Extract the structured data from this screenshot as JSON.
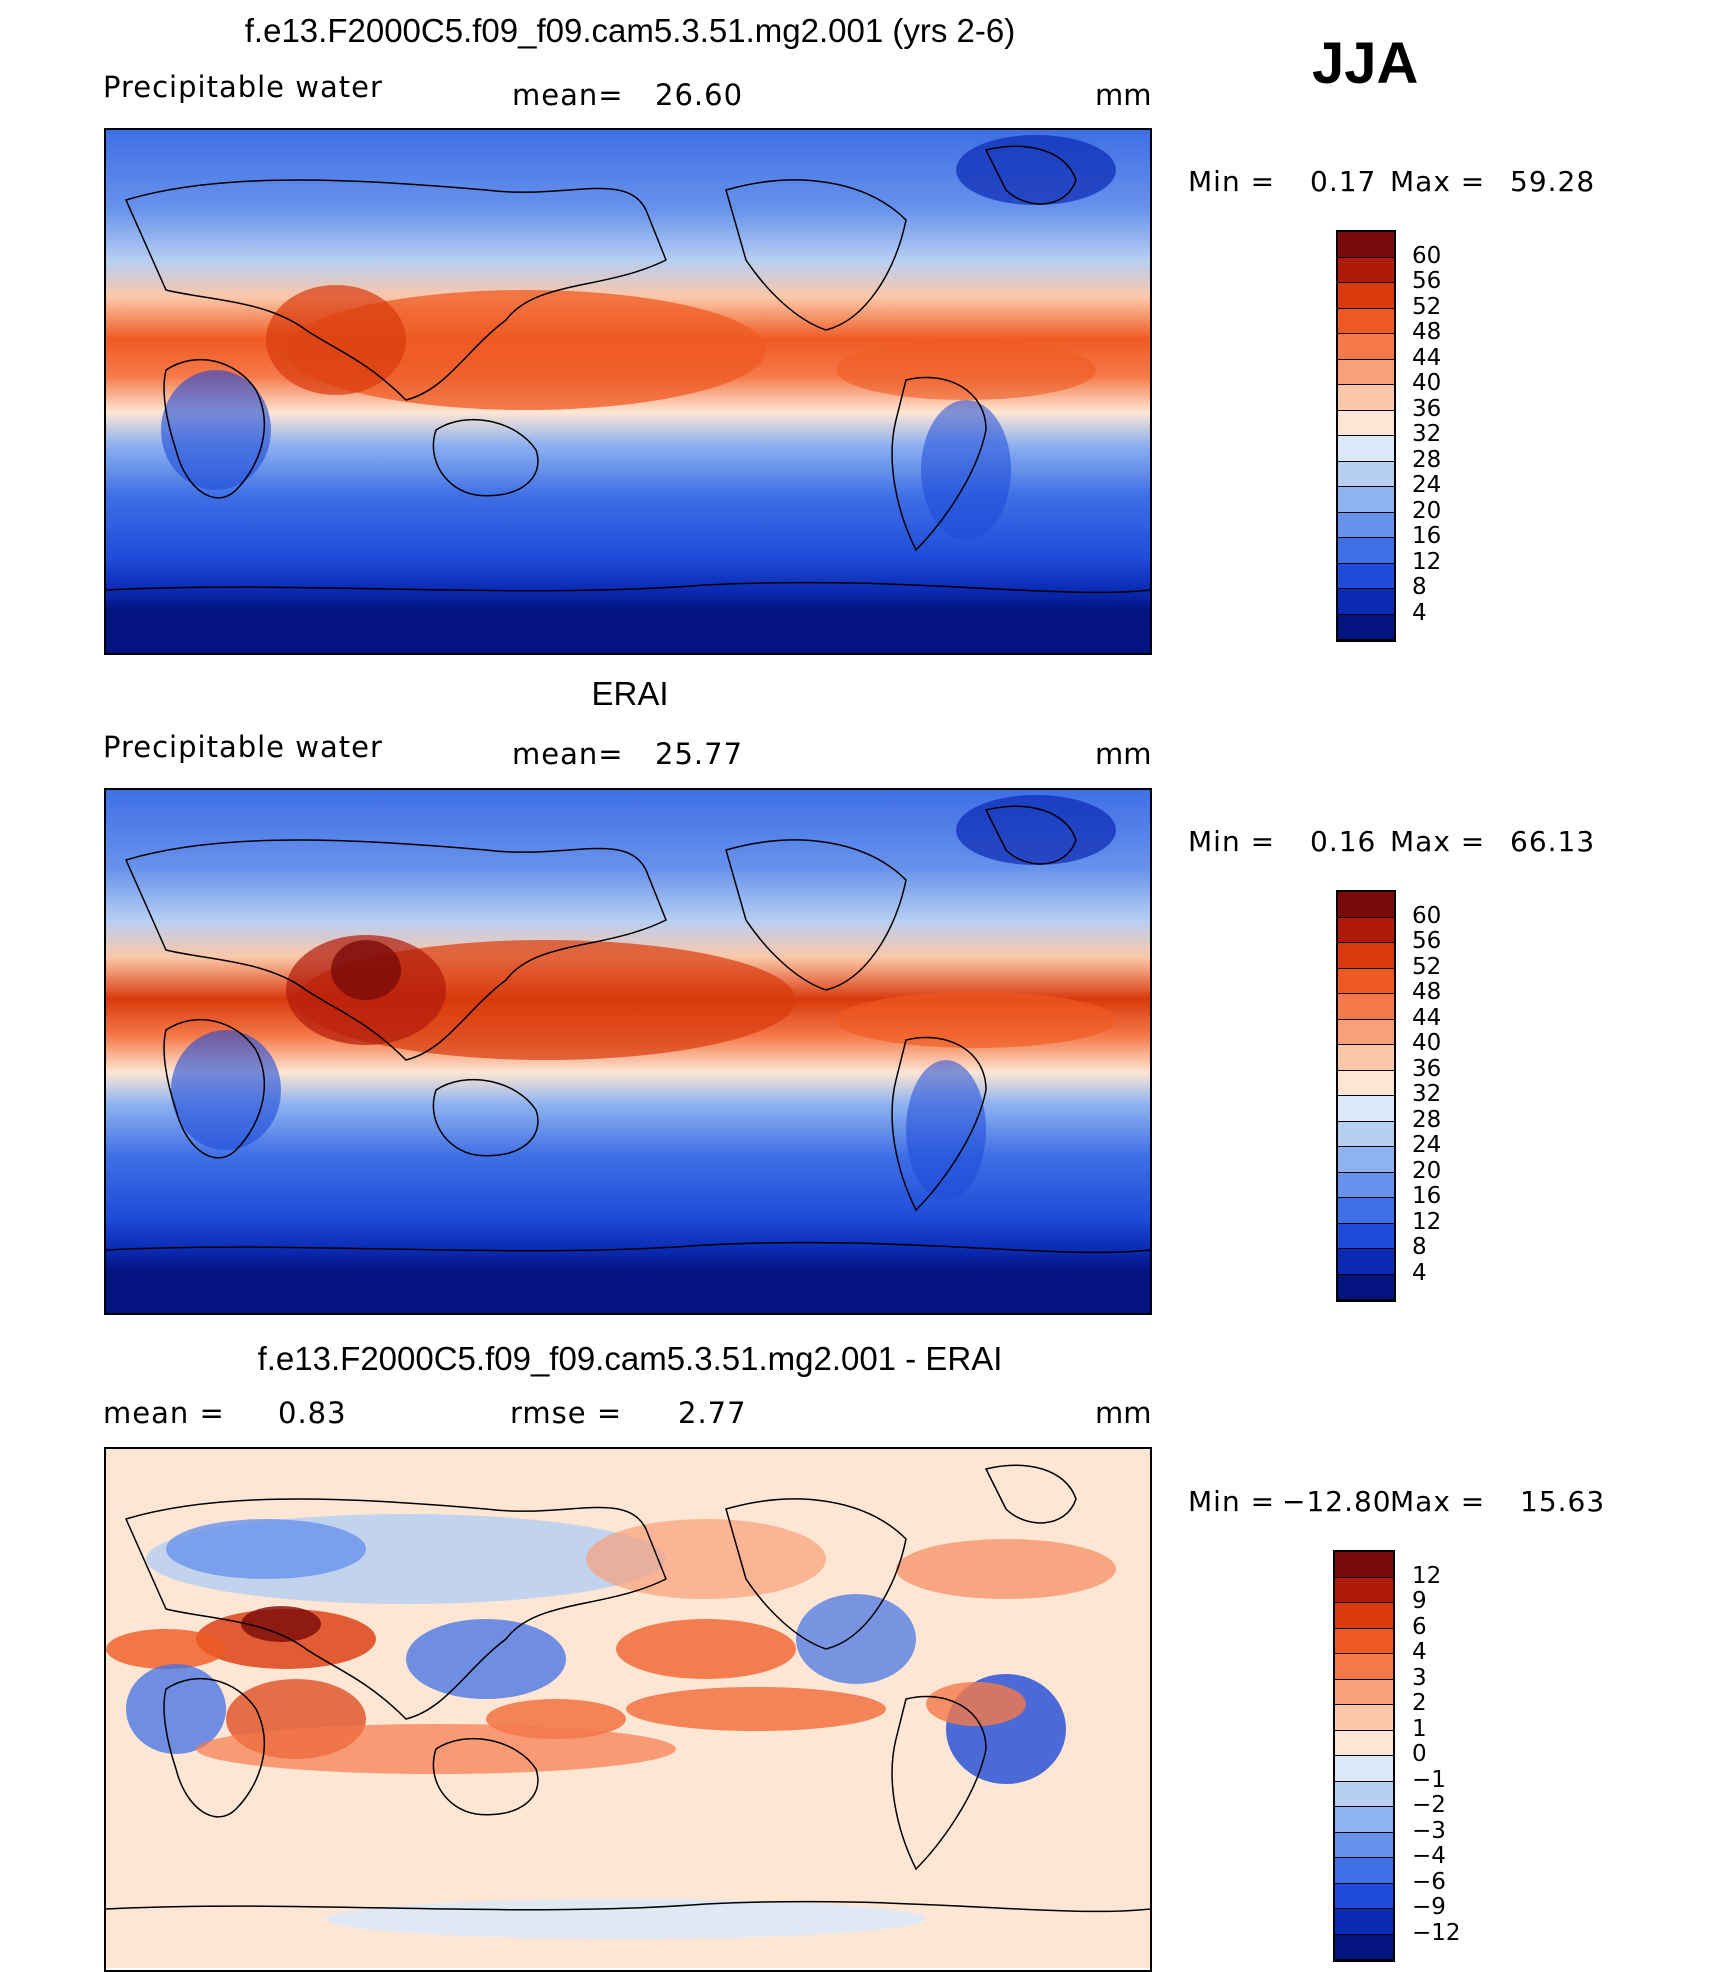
{
  "season": "JJA",
  "panels": [
    {
      "title": "f.e13.F2000C5.f09_f09.cam5.3.51.mg2.001 (yrs 2-6)",
      "variable": "Precipitable water",
      "stat_left_label": "",
      "stat_left_value": "",
      "mean_label": "mean=",
      "mean_value": "26.60",
      "units": "mm",
      "min_label": "Min =",
      "min_value": "0.17",
      "max_label": "Max =",
      "max_value": "59.28",
      "colorbar_labels": [
        "60",
        "56",
        "52",
        "48",
        "44",
        "40",
        "36",
        "32",
        "28",
        "24",
        "20",
        "16",
        "12",
        "8",
        "4"
      ]
    },
    {
      "title": "ERAI",
      "variable": "Precipitable water",
      "mean_label": "mean=",
      "mean_value": "25.77",
      "units": "mm",
      "min_label": "Min =",
      "min_value": "0.16",
      "max_label": "Max =",
      "max_value": "66.13",
      "colorbar_labels": [
        "60",
        "56",
        "52",
        "48",
        "44",
        "40",
        "36",
        "32",
        "28",
        "24",
        "20",
        "16",
        "12",
        "8",
        "4"
      ]
    },
    {
      "title": "f.e13.F2000C5.f09_f09.cam5.3.51.mg2.001 - ERAI",
      "mean_label": "mean =",
      "mean_value": "0.83",
      "rmse_label": "rmse =",
      "rmse_value": "2.77",
      "units": "mm",
      "min_label": "Min =",
      "min_value": "−12.80",
      "max_label": "Max =",
      "max_value": "15.63",
      "colorbar_labels": [
        "12",
        "9",
        "6",
        "4",
        "3",
        "2",
        "1",
        "0",
        "−1",
        "−2",
        "−3",
        "−4",
        "−6",
        "−9",
        "−12"
      ]
    }
  ],
  "colors": {
    "abs_scale": [
      "#7a0a0a",
      "#b01a0a",
      "#d93a0d",
      "#ef5a22",
      "#f5794a",
      "#f9a07a",
      "#fcc7a8",
      "#fde6d4",
      "#dbe8f7",
      "#b7cff2",
      "#8fb3ef",
      "#6792ec",
      "#3f6fe6",
      "#1e4bd8",
      "#0b2ab3",
      "#03137f"
    ],
    "diff_scale": [
      "#7a0a0a",
      "#b01a0a",
      "#d93a0d",
      "#ef5a22",
      "#f5794a",
      "#f9a07a",
      "#fcc7a8",
      "#fde6d4",
      "#dbe8f7",
      "#b7cff2",
      "#8fb3ef",
      "#6792ec",
      "#3f6fe6",
      "#1e4bd8",
      "#0b2ab3",
      "#03137f"
    ]
  }
}
